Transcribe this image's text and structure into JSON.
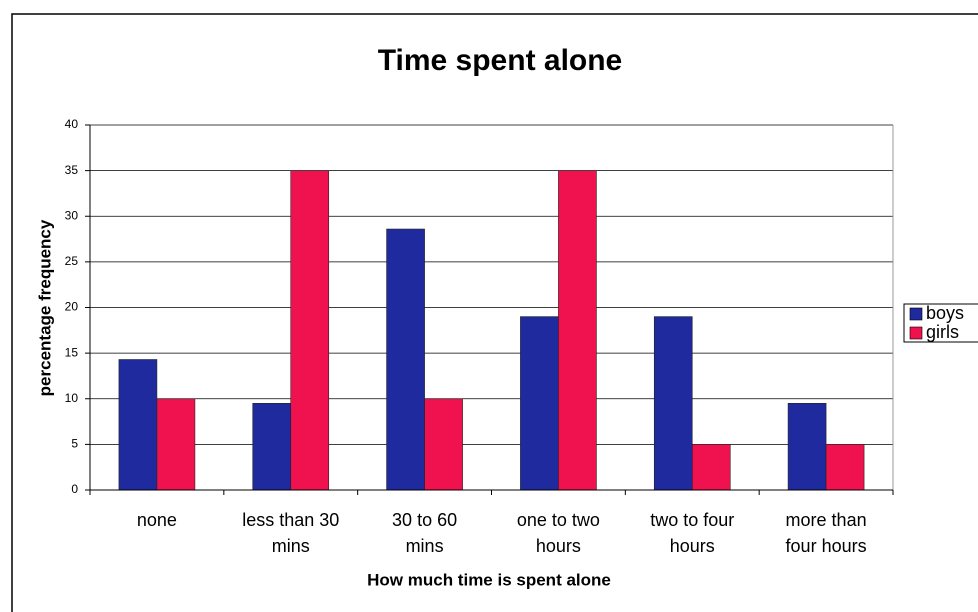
{
  "chart_data": {
    "type": "bar",
    "title": "Time spent alone",
    "x_label": "How much time is spent alone",
    "y_label": "percentage frequency",
    "categories": [
      "none",
      "less than 30\nmins",
      "30 to 60\nmins",
      "one to two\nhours",
      "two to four\nhours",
      "more than\nfour hours"
    ],
    "series": [
      {
        "name": "boys",
        "color": "#1f2a9e",
        "values": [
          14.3,
          9.5,
          28.6,
          19,
          19,
          9.5
        ]
      },
      {
        "name": "girls",
        "color": "#f0124f",
        "values": [
          10,
          35,
          10,
          35,
          5,
          5
        ]
      }
    ],
    "ylim": [
      0,
      40
    ],
    "yticks": [
      0,
      5,
      10,
      15,
      20,
      25,
      30,
      35,
      40
    ],
    "grid": true,
    "legend": "right"
  }
}
